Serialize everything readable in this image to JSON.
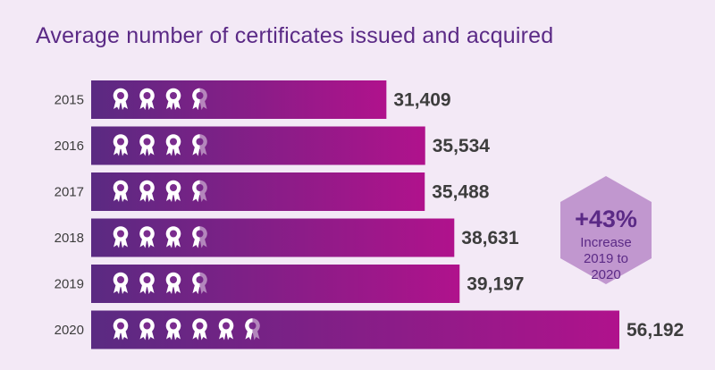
{
  "title": "Average number of certificates issued and acquired",
  "chart_data": {
    "type": "bar",
    "orientation": "horizontal",
    "title": "Average number of certificates issued and acquired",
    "categories": [
      "2015",
      "2016",
      "2017",
      "2018",
      "2019",
      "2020"
    ],
    "values": [
      31409,
      35534,
      35488,
      38631,
      39197,
      56192
    ],
    "value_labels": [
      "31,409",
      "35,534",
      "35,488",
      "38,631",
      "39,197",
      "56,192"
    ],
    "icon_counts": [
      3.5,
      3.5,
      3.5,
      3.5,
      3.5,
      5.5
    ],
    "icon": "award-ribbon-icon",
    "xlim": [
      0,
      56192
    ],
    "colors": {
      "bar_start": "#5a2a82",
      "bar_end": "#b0128c",
      "background": "#f3e9f6",
      "title": "#5b2a86",
      "badge": "#c197cf"
    },
    "annotation": {
      "big": "+43%",
      "lines": [
        "Increase",
        "2019 to",
        "2020"
      ]
    }
  }
}
